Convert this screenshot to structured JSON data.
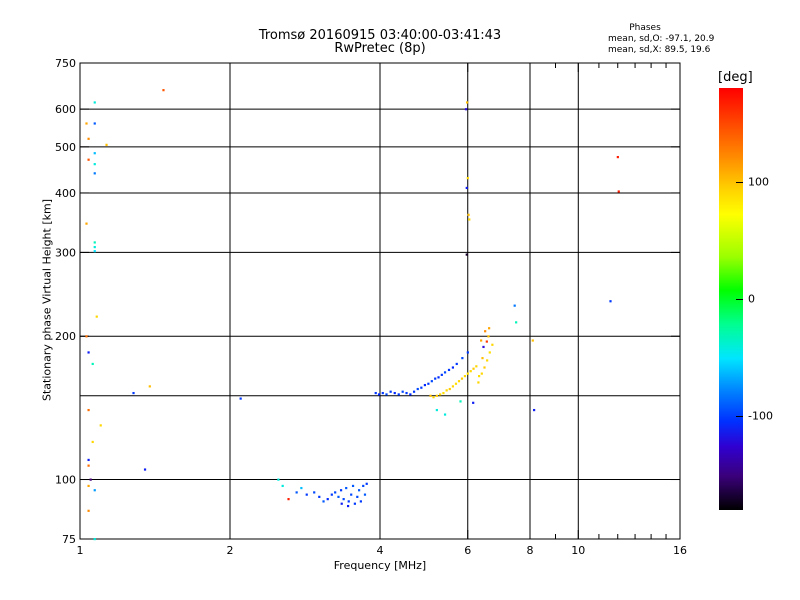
{
  "header": {
    "title_line1": "Tromsø 20160915 03:40:00-03:41:43",
    "title_line2": "RwPretec (8p)",
    "phases_heading": "Phases",
    "phases_o": "mean, sd,O: -97.1, 20.9",
    "phases_x": "mean, sd,X:  89.5, 19.6"
  },
  "colorbar": {
    "unit": "[deg]",
    "ticks": [
      {
        "value": 100,
        "label": "100"
      },
      {
        "value": 0,
        "label": "0"
      },
      {
        "value": -100,
        "label": "-100"
      }
    ],
    "range": [
      -180,
      180
    ]
  },
  "chart_data": {
    "type": "scatter",
    "title": "Tromsø 20160915 03:40:00-03:41:43",
    "subtitle": "RwPretec (8p)",
    "xlabel": "Frequency [MHz]",
    "ylabel": "Stationary phase Virtual Height [km]",
    "x_scale": "log",
    "y_scale": "log",
    "xlim": [
      1,
      16
    ],
    "ylim": [
      75,
      750
    ],
    "x_ticks": [
      {
        "value": 1,
        "label": "1"
      },
      {
        "value": 2,
        "label": "2"
      },
      {
        "value": 4,
        "label": "4"
      },
      {
        "value": 6,
        "label": "6"
      },
      {
        "value": 8,
        "label": "8"
      },
      {
        "value": 10,
        "label": "10"
      },
      {
        "value": 16,
        "label": "16"
      }
    ],
    "x_minor": [
      9,
      11,
      12,
      13,
      14,
      15
    ],
    "y_ticks": [
      {
        "value": 75,
        "label": "75"
      },
      {
        "value": 100,
        "label": "100"
      },
      {
        "value": 200,
        "label": "200"
      },
      {
        "value": 300,
        "label": "300"
      },
      {
        "value": 400,
        "label": "400"
      },
      {
        "value": 500,
        "label": "500"
      },
      {
        "value": 600,
        "label": "600"
      },
      {
        "value": 750,
        "label": "750"
      }
    ],
    "x_grid": [
      1,
      2,
      4,
      6,
      8,
      10,
      16
    ],
    "y_grid": [
      75,
      100,
      150,
      200,
      300,
      400,
      500,
      600,
      750
    ],
    "colorbar_label": "[deg]",
    "points": [
      {
        "x": 1.03,
        "y": 560,
        "phase": 120
      },
      {
        "x": 1.04,
        "y": 520,
        "phase": 130
      },
      {
        "x": 1.04,
        "y": 470,
        "phase": 150
      },
      {
        "x": 1.03,
        "y": 345,
        "phase": 120
      },
      {
        "x": 1.03,
        "y": 200,
        "phase": 140
      },
      {
        "x": 1.04,
        "y": 185,
        "phase": -110
      },
      {
        "x": 1.06,
        "y": 175,
        "phase": -30
      },
      {
        "x": 1.04,
        "y": 140,
        "phase": 140
      },
      {
        "x": 1.04,
        "y": 110,
        "phase": -110
      },
      {
        "x": 1.04,
        "y": 107,
        "phase": 140
      },
      {
        "x": 1.05,
        "y": 100,
        "phase": -150
      },
      {
        "x": 1.04,
        "y": 97,
        "phase": 120
      },
      {
        "x": 1.04,
        "y": 86,
        "phase": 130
      },
      {
        "x": 1.06,
        "y": 120,
        "phase": 100
      },
      {
        "x": 1.07,
        "y": 620,
        "phase": -40
      },
      {
        "x": 1.07,
        "y": 560,
        "phase": -90
      },
      {
        "x": 1.07,
        "y": 485,
        "phase": -60
      },
      {
        "x": 1.07,
        "y": 460,
        "phase": -40
      },
      {
        "x": 1.07,
        "y": 440,
        "phase": -80
      },
      {
        "x": 1.07,
        "y": 315,
        "phase": -30
      },
      {
        "x": 1.07,
        "y": 308,
        "phase": -40
      },
      {
        "x": 1.07,
        "y": 302,
        "phase": -50
      },
      {
        "x": 1.08,
        "y": 220,
        "phase": 100
      },
      {
        "x": 1.07,
        "y": 95,
        "phase": -70
      },
      {
        "x": 1.07,
        "y": 75,
        "phase": -40
      },
      {
        "x": 1.1,
        "y": 130,
        "phase": 100
      },
      {
        "x": 1.13,
        "y": 505,
        "phase": 110
      },
      {
        "x": 1.28,
        "y": 152,
        "phase": -100
      },
      {
        "x": 1.35,
        "y": 105,
        "phase": -110
      },
      {
        "x": 1.38,
        "y": 157,
        "phase": 110
      },
      {
        "x": 1.47,
        "y": 658,
        "phase": 150
      },
      {
        "x": 2.1,
        "y": 148,
        "phase": -100
      },
      {
        "x": 2.5,
        "y": 100,
        "phase": -40
      },
      {
        "x": 2.55,
        "y": 97,
        "phase": -40
      },
      {
        "x": 2.62,
        "y": 91,
        "phase": 170
      },
      {
        "x": 2.72,
        "y": 94,
        "phase": -90
      },
      {
        "x": 2.78,
        "y": 96,
        "phase": -60
      },
      {
        "x": 2.85,
        "y": 93,
        "phase": -100
      },
      {
        "x": 2.95,
        "y": 94,
        "phase": -95
      },
      {
        "x": 3.02,
        "y": 92,
        "phase": -100
      },
      {
        "x": 3.08,
        "y": 90,
        "phase": -90
      },
      {
        "x": 3.14,
        "y": 91,
        "phase": -105
      },
      {
        "x": 3.2,
        "y": 93,
        "phase": -100
      },
      {
        "x": 3.25,
        "y": 94,
        "phase": -95
      },
      {
        "x": 3.3,
        "y": 92,
        "phase": -90
      },
      {
        "x": 3.34,
        "y": 95,
        "phase": -100
      },
      {
        "x": 3.38,
        "y": 91,
        "phase": -95
      },
      {
        "x": 3.42,
        "y": 96,
        "phase": -90
      },
      {
        "x": 3.46,
        "y": 90,
        "phase": -100
      },
      {
        "x": 3.5,
        "y": 93,
        "phase": -95
      },
      {
        "x": 3.53,
        "y": 97,
        "phase": -90
      },
      {
        "x": 3.56,
        "y": 89,
        "phase": -100
      },
      {
        "x": 3.6,
        "y": 92,
        "phase": -95
      },
      {
        "x": 3.63,
        "y": 95,
        "phase": -90
      },
      {
        "x": 3.66,
        "y": 90,
        "phase": -100
      },
      {
        "x": 3.7,
        "y": 97,
        "phase": -95
      },
      {
        "x": 3.73,
        "y": 93,
        "phase": -90
      },
      {
        "x": 3.76,
        "y": 98,
        "phase": -100
      },
      {
        "x": 3.45,
        "y": 88,
        "phase": -110
      },
      {
        "x": 3.35,
        "y": 89,
        "phase": -110
      },
      {
        "x": 3.92,
        "y": 152,
        "phase": -100
      },
      {
        "x": 3.98,
        "y": 151,
        "phase": -105
      },
      {
        "x": 4.05,
        "y": 152,
        "phase": -100
      },
      {
        "x": 4.12,
        "y": 151,
        "phase": -95
      },
      {
        "x": 4.2,
        "y": 153,
        "phase": -100
      },
      {
        "x": 4.28,
        "y": 152,
        "phase": -105
      },
      {
        "x": 4.36,
        "y": 151,
        "phase": -100
      },
      {
        "x": 4.44,
        "y": 153,
        "phase": -95
      },
      {
        "x": 4.52,
        "y": 152,
        "phase": -100
      },
      {
        "x": 4.6,
        "y": 151,
        "phase": -105
      },
      {
        "x": 4.68,
        "y": 153,
        "phase": -100
      },
      {
        "x": 4.76,
        "y": 155,
        "phase": -95
      },
      {
        "x": 4.84,
        "y": 156,
        "phase": -100
      },
      {
        "x": 4.92,
        "y": 158,
        "phase": -105
      },
      {
        "x": 5.0,
        "y": 159,
        "phase": -100
      },
      {
        "x": 5.08,
        "y": 161,
        "phase": -95
      },
      {
        "x": 5.16,
        "y": 163,
        "phase": -100
      },
      {
        "x": 5.24,
        "y": 164,
        "phase": -105
      },
      {
        "x": 5.32,
        "y": 166,
        "phase": -100
      },
      {
        "x": 5.4,
        "y": 168,
        "phase": -95
      },
      {
        "x": 5.5,
        "y": 170,
        "phase": -100
      },
      {
        "x": 5.6,
        "y": 172,
        "phase": -105
      },
      {
        "x": 5.7,
        "y": 175,
        "phase": -100
      },
      {
        "x": 5.85,
        "y": 180,
        "phase": -95
      },
      {
        "x": 6.0,
        "y": 185,
        "phase": -100
      },
      {
        "x": 5.05,
        "y": 150,
        "phase": 110
      },
      {
        "x": 5.12,
        "y": 149,
        "phase": 100
      },
      {
        "x": 5.2,
        "y": 150,
        "phase": 105
      },
      {
        "x": 5.28,
        "y": 151,
        "phase": 100
      },
      {
        "x": 5.36,
        "y": 152,
        "phase": 95
      },
      {
        "x": 5.44,
        "y": 154,
        "phase": 100
      },
      {
        "x": 5.52,
        "y": 155,
        "phase": 105
      },
      {
        "x": 5.6,
        "y": 157,
        "phase": 100
      },
      {
        "x": 5.68,
        "y": 159,
        "phase": 95
      },
      {
        "x": 5.76,
        "y": 161,
        "phase": 100
      },
      {
        "x": 5.84,
        "y": 163,
        "phase": 105
      },
      {
        "x": 5.92,
        "y": 165,
        "phase": 100
      },
      {
        "x": 6.0,
        "y": 167,
        "phase": 95
      },
      {
        "x": 6.08,
        "y": 169,
        "phase": 100
      },
      {
        "x": 6.16,
        "y": 171,
        "phase": 105
      },
      {
        "x": 6.24,
        "y": 173,
        "phase": 100
      },
      {
        "x": 6.32,
        "y": 165,
        "phase": 95
      },
      {
        "x": 6.4,
        "y": 167,
        "phase": 100
      },
      {
        "x": 6.48,
        "y": 172,
        "phase": 105
      },
      {
        "x": 6.56,
        "y": 178,
        "phase": 100
      },
      {
        "x": 6.64,
        "y": 185,
        "phase": 95
      },
      {
        "x": 6.72,
        "y": 192,
        "phase": 100
      },
      {
        "x": 6.6,
        "y": 200,
        "phase": 110
      },
      {
        "x": 6.62,
        "y": 208,
        "phase": 120
      },
      {
        "x": 6.5,
        "y": 205,
        "phase": 130
      },
      {
        "x": 6.55,
        "y": 195,
        "phase": 160
      },
      {
        "x": 6.45,
        "y": 190,
        "phase": -120
      },
      {
        "x": 6.38,
        "y": 196,
        "phase": 120
      },
      {
        "x": 6.42,
        "y": 180,
        "phase": 110
      },
      {
        "x": 6.3,
        "y": 160,
        "phase": 100
      },
      {
        "x": 5.2,
        "y": 140,
        "phase": -40
      },
      {
        "x": 5.4,
        "y": 137,
        "phase": -40
      },
      {
        "x": 5.8,
        "y": 146,
        "phase": -30
      },
      {
        "x": 6.15,
        "y": 145,
        "phase": -110
      },
      {
        "x": 5.95,
        "y": 600,
        "phase": -120
      },
      {
        "x": 5.98,
        "y": 620,
        "phase": 110
      },
      {
        "x": 5.97,
        "y": 410,
        "phase": -110
      },
      {
        "x": 6.0,
        "y": 430,
        "phase": 100
      },
      {
        "x": 6.02,
        "y": 360,
        "phase": 110
      },
      {
        "x": 6.04,
        "y": 352,
        "phase": 100
      },
      {
        "x": 5.97,
        "y": 297,
        "phase": -170
      },
      {
        "x": 7.45,
        "y": 232,
        "phase": -80
      },
      {
        "x": 7.5,
        "y": 214,
        "phase": -30
      },
      {
        "x": 8.1,
        "y": 196,
        "phase": 110
      },
      {
        "x": 8.15,
        "y": 140,
        "phase": -110
      },
      {
        "x": 11.6,
        "y": 237,
        "phase": -100
      },
      {
        "x": 12.0,
        "y": 476,
        "phase": 170
      },
      {
        "x": 12.05,
        "y": 403,
        "phase": 170
      }
    ]
  }
}
